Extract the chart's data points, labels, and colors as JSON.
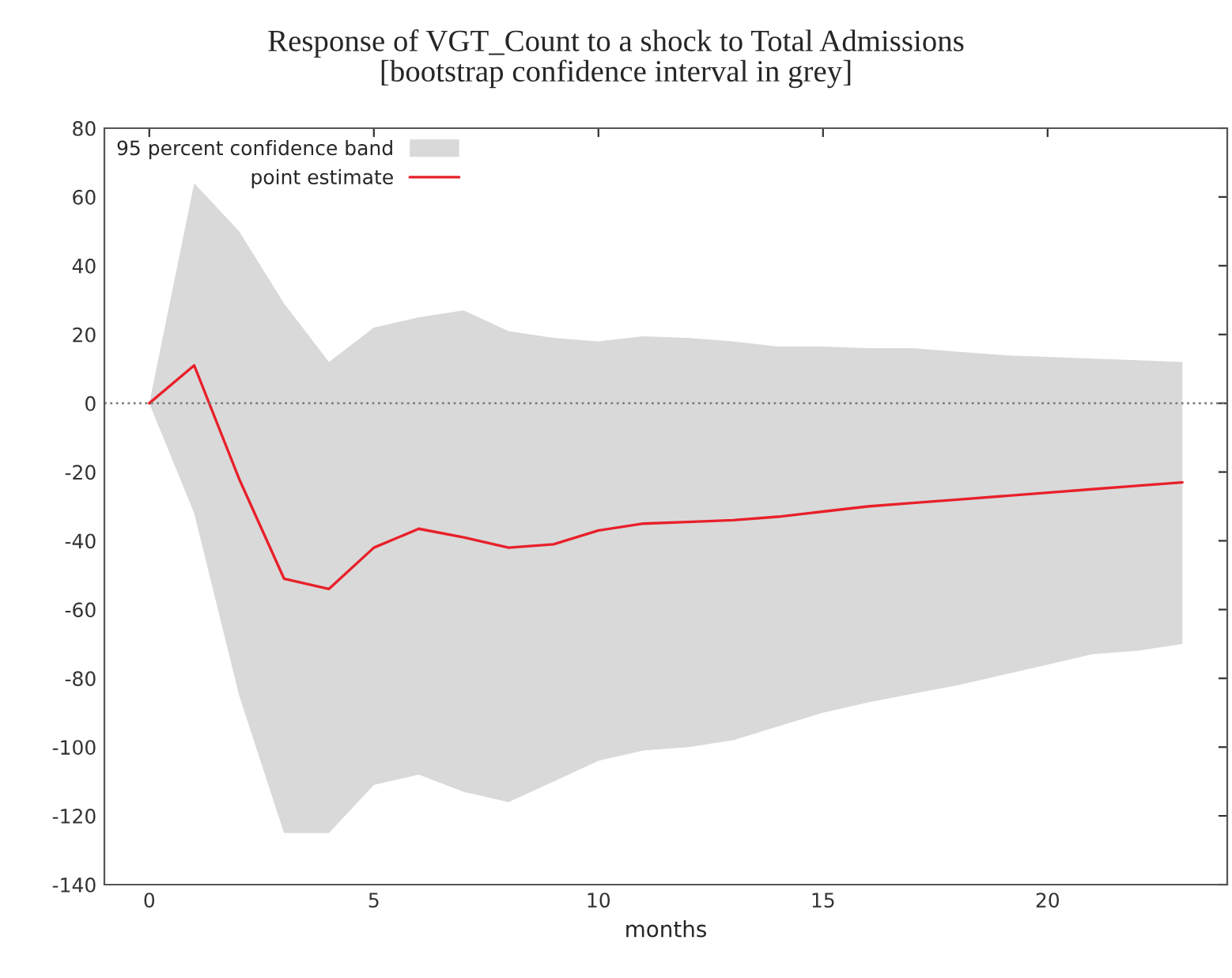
{
  "chart_data": {
    "type": "line",
    "title": "Response of VGT_Count to a shock to Total Admissions\n[bootstrap confidence interval in grey]",
    "xlabel": "months",
    "x": [
      0,
      1,
      2,
      3,
      4,
      5,
      6,
      7,
      8,
      9,
      10,
      11,
      12,
      13,
      14,
      15,
      16,
      17,
      18,
      19,
      20,
      21,
      22,
      23
    ],
    "series": [
      {
        "name": "point estimate",
        "color": "#e8202a",
        "values": [
          0,
          11,
          -22,
          -51,
          -54,
          -42,
          -36.5,
          -39,
          -42,
          -41,
          -37,
          -35,
          -34.5,
          -34,
          -33,
          -31.5,
          -30,
          -29,
          -28,
          -27,
          -26,
          -25,
          -24,
          -23
        ],
        "lower": [
          0,
          -32,
          -85,
          -125,
          -125,
          -111,
          -108,
          -113,
          -116,
          -110,
          -104,
          -101,
          -100,
          -98,
          -94,
          -90,
          -87,
          -84.5,
          -82,
          -79,
          -76,
          -73,
          -72,
          -70
        ],
        "upper": [
          0,
          64,
          50,
          29,
          12,
          22,
          25,
          27,
          21,
          19,
          18,
          19.5,
          19,
          18,
          16.5,
          16.5,
          16,
          16,
          15,
          14,
          13.5,
          13,
          12.5,
          12
        ]
      }
    ],
    "annotations": [
      "95 percent confidence band"
    ],
    "xlim": [
      -1,
      24
    ],
    "ylim": [
      -140,
      80
    ],
    "xticks": [
      0,
      5,
      10,
      15,
      20
    ],
    "yticks": [
      -140,
      -120,
      -100,
      -80,
      -60,
      -40,
      -20,
      0,
      20,
      40,
      60,
      80
    ],
    "ref_lines": [
      {
        "axis": "y",
        "value": 0,
        "color": "#808080",
        "line_style": "dotted"
      }
    ],
    "legend": "top left",
    "grid": false,
    "line_style": "solid",
    "marker": "none"
  }
}
